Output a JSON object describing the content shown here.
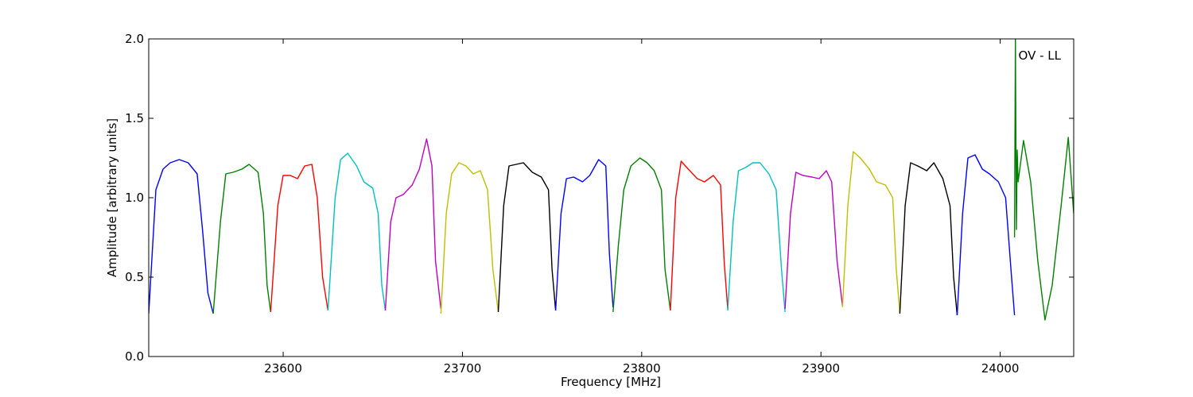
{
  "chart_data": {
    "type": "line",
    "title": "",
    "xlabel": "Frequency [MHz]",
    "ylabel": "Amplitude [arbitrary units]",
    "xlim": [
      23525,
      24041
    ],
    "ylim": [
      0,
      2.0
    ],
    "x_ticks": [
      23600,
      23700,
      23800,
      23900,
      24000
    ],
    "x_tick_labels": [
      "23600",
      "23700",
      "23800",
      "23900",
      "24000"
    ],
    "y_ticks": [
      0.0,
      0.5,
      1.0,
      1.5,
      2.0
    ],
    "y_tick_labels": [
      "0.0",
      "0.5",
      "1.0",
      "1.5",
      "2.0"
    ],
    "grid": false,
    "annotation": "OV - LL",
    "colors": [
      "#0000ff",
      "#008000",
      "#ff0000",
      "#00bfbf",
      "#bf00bf",
      "#bfbf00",
      "#000000"
    ],
    "series": [
      {
        "color": "#0000ff",
        "x": [
          23525,
          23529,
          23533,
          23537,
          23542,
          23547,
          23552,
          23555,
          23558,
          23561
        ],
        "y": [
          0.27,
          1.05,
          1.18,
          1.22,
          1.24,
          1.22,
          1.15,
          0.8,
          0.4,
          0.27
        ]
      },
      {
        "color": "#008000",
        "x": [
          23561,
          23565,
          23568,
          23572,
          23577,
          23581,
          23586,
          23589,
          23591,
          23593
        ],
        "y": [
          0.27,
          0.85,
          1.15,
          1.16,
          1.18,
          1.21,
          1.16,
          0.9,
          0.45,
          0.28
        ]
      },
      {
        "color": "#ff0000",
        "x": [
          23593,
          23597,
          23600,
          23604,
          23608,
          23612,
          23616,
          23619,
          23622,
          23625
        ],
        "y": [
          0.28,
          0.95,
          1.14,
          1.14,
          1.12,
          1.2,
          1.21,
          1.0,
          0.5,
          0.29
        ]
      },
      {
        "color": "#00bfbf",
        "x": [
          23625,
          23629,
          23632,
          23636,
          23641,
          23645,
          23650,
          23653,
          23655,
          23657
        ],
        "y": [
          0.29,
          1.0,
          1.24,
          1.28,
          1.2,
          1.1,
          1.06,
          0.9,
          0.45,
          0.29
        ]
      },
      {
        "color": "#bf00bf",
        "x": [
          23657,
          23660,
          23663,
          23667,
          23672,
          23676,
          23680,
          23683,
          23685,
          23688
        ],
        "y": [
          0.29,
          0.85,
          1.0,
          1.02,
          1.08,
          1.18,
          1.37,
          1.2,
          0.6,
          0.3
        ]
      },
      {
        "color": "#bfbf00",
        "x": [
          23688,
          23691,
          23694,
          23698,
          23702,
          23706,
          23710,
          23714,
          23717,
          23720
        ],
        "y": [
          0.27,
          0.9,
          1.15,
          1.22,
          1.2,
          1.15,
          1.17,
          1.05,
          0.55,
          0.28
        ]
      },
      {
        "color": "#000000",
        "x": [
          23720,
          23723,
          23726,
          23730,
          23734,
          23739,
          23744,
          23748,
          23750,
          23752
        ],
        "y": [
          0.28,
          0.95,
          1.2,
          1.21,
          1.22,
          1.16,
          1.13,
          1.05,
          0.55,
          0.29
        ]
      },
      {
        "color": "#0000ff",
        "x": [
          23752,
          23755,
          23758,
          23762,
          23767,
          23771,
          23776,
          23780,
          23782,
          23784
        ],
        "y": [
          0.29,
          0.9,
          1.12,
          1.13,
          1.1,
          1.14,
          1.24,
          1.2,
          0.65,
          0.31
        ]
      },
      {
        "color": "#008000",
        "x": [
          23784,
          23787,
          23790,
          23794,
          23799,
          23803,
          23807,
          23811,
          23813,
          23816
        ],
        "y": [
          0.28,
          0.7,
          1.05,
          1.2,
          1.25,
          1.22,
          1.17,
          1.05,
          0.55,
          0.29
        ]
      },
      {
        "color": "#ff0000",
        "x": [
          23816,
          23819,
          23822,
          23826,
          23831,
          23835,
          23840,
          23844,
          23846,
          23848
        ],
        "y": [
          0.29,
          1.0,
          1.23,
          1.18,
          1.12,
          1.1,
          1.14,
          1.08,
          0.6,
          0.3
        ]
      },
      {
        "color": "#00bfbf",
        "x": [
          23848,
          23851,
          23854,
          23858,
          23862,
          23866,
          23871,
          23875,
          23878,
          23880
        ],
        "y": [
          0.29,
          0.85,
          1.17,
          1.19,
          1.22,
          1.22,
          1.15,
          1.05,
          0.55,
          0.28
        ]
      },
      {
        "color": "#bf00bf",
        "x": [
          23880,
          23883,
          23886,
          23890,
          23895,
          23899,
          23903,
          23906,
          23909,
          23912
        ],
        "y": [
          0.3,
          0.9,
          1.16,
          1.14,
          1.13,
          1.12,
          1.17,
          1.1,
          0.6,
          0.32
        ]
      },
      {
        "color": "#bfbf00",
        "x": [
          23912,
          23915,
          23918,
          23922,
          23927,
          23931,
          23936,
          23940,
          23942,
          23944
        ],
        "y": [
          0.31,
          0.95,
          1.29,
          1.25,
          1.18,
          1.1,
          1.08,
          1.0,
          0.55,
          0.27
        ]
      },
      {
        "color": "#000000",
        "x": [
          23944,
          23947,
          23950,
          23954,
          23959,
          23963,
          23968,
          23972,
          23974,
          23976
        ],
        "y": [
          0.27,
          0.95,
          1.22,
          1.2,
          1.17,
          1.22,
          1.12,
          0.95,
          0.5,
          0.26
        ]
      },
      {
        "color": "#0000ff",
        "x": [
          23976,
          23979,
          23982,
          23986,
          23990,
          23994,
          23999,
          24003,
          24006,
          24008
        ],
        "y": [
          0.26,
          0.9,
          1.25,
          1.27,
          1.18,
          1.15,
          1.1,
          1.0,
          0.55,
          0.26
        ]
      },
      {
        "color": "#008000",
        "x": [
          24008,
          24008.5,
          24009,
          24009.5,
          24010,
          24013,
          24017,
          24021,
          24025,
          24029,
          24034,
          24038,
          24041
        ],
        "y": [
          0.75,
          2.0,
          0.8,
          1.3,
          1.1,
          1.36,
          1.1,
          0.6,
          0.23,
          0.45,
          0.95,
          1.38,
          0.9
        ]
      }
    ]
  }
}
